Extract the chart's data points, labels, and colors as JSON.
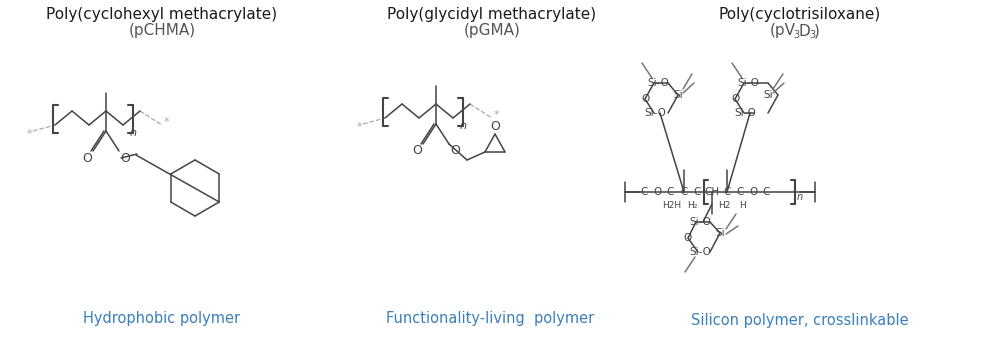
{
  "title1": "Poly(cyclohexyl methacrylate)",
  "subtitle1": "(pCHMA)",
  "label1": "Hydrophobic polymer",
  "title2": "Poly(glycidyl methacrylate)",
  "subtitle2": "(pGMA)",
  "label2": "Functionality-living  polymer",
  "title3": "Poly(cyclotrisiloxane)",
  "label3": "Silicon polymer, crosslinkable",
  "title_color": "#1a1a1a",
  "subtitle_color": "#555555",
  "label_color": "#3a80bc",
  "bg_color": "#ffffff",
  "sc": "#444444",
  "lc": "#aaaaaa",
  "title_fs": 11,
  "subtitle_fs": 11,
  "label_fs": 10.5
}
